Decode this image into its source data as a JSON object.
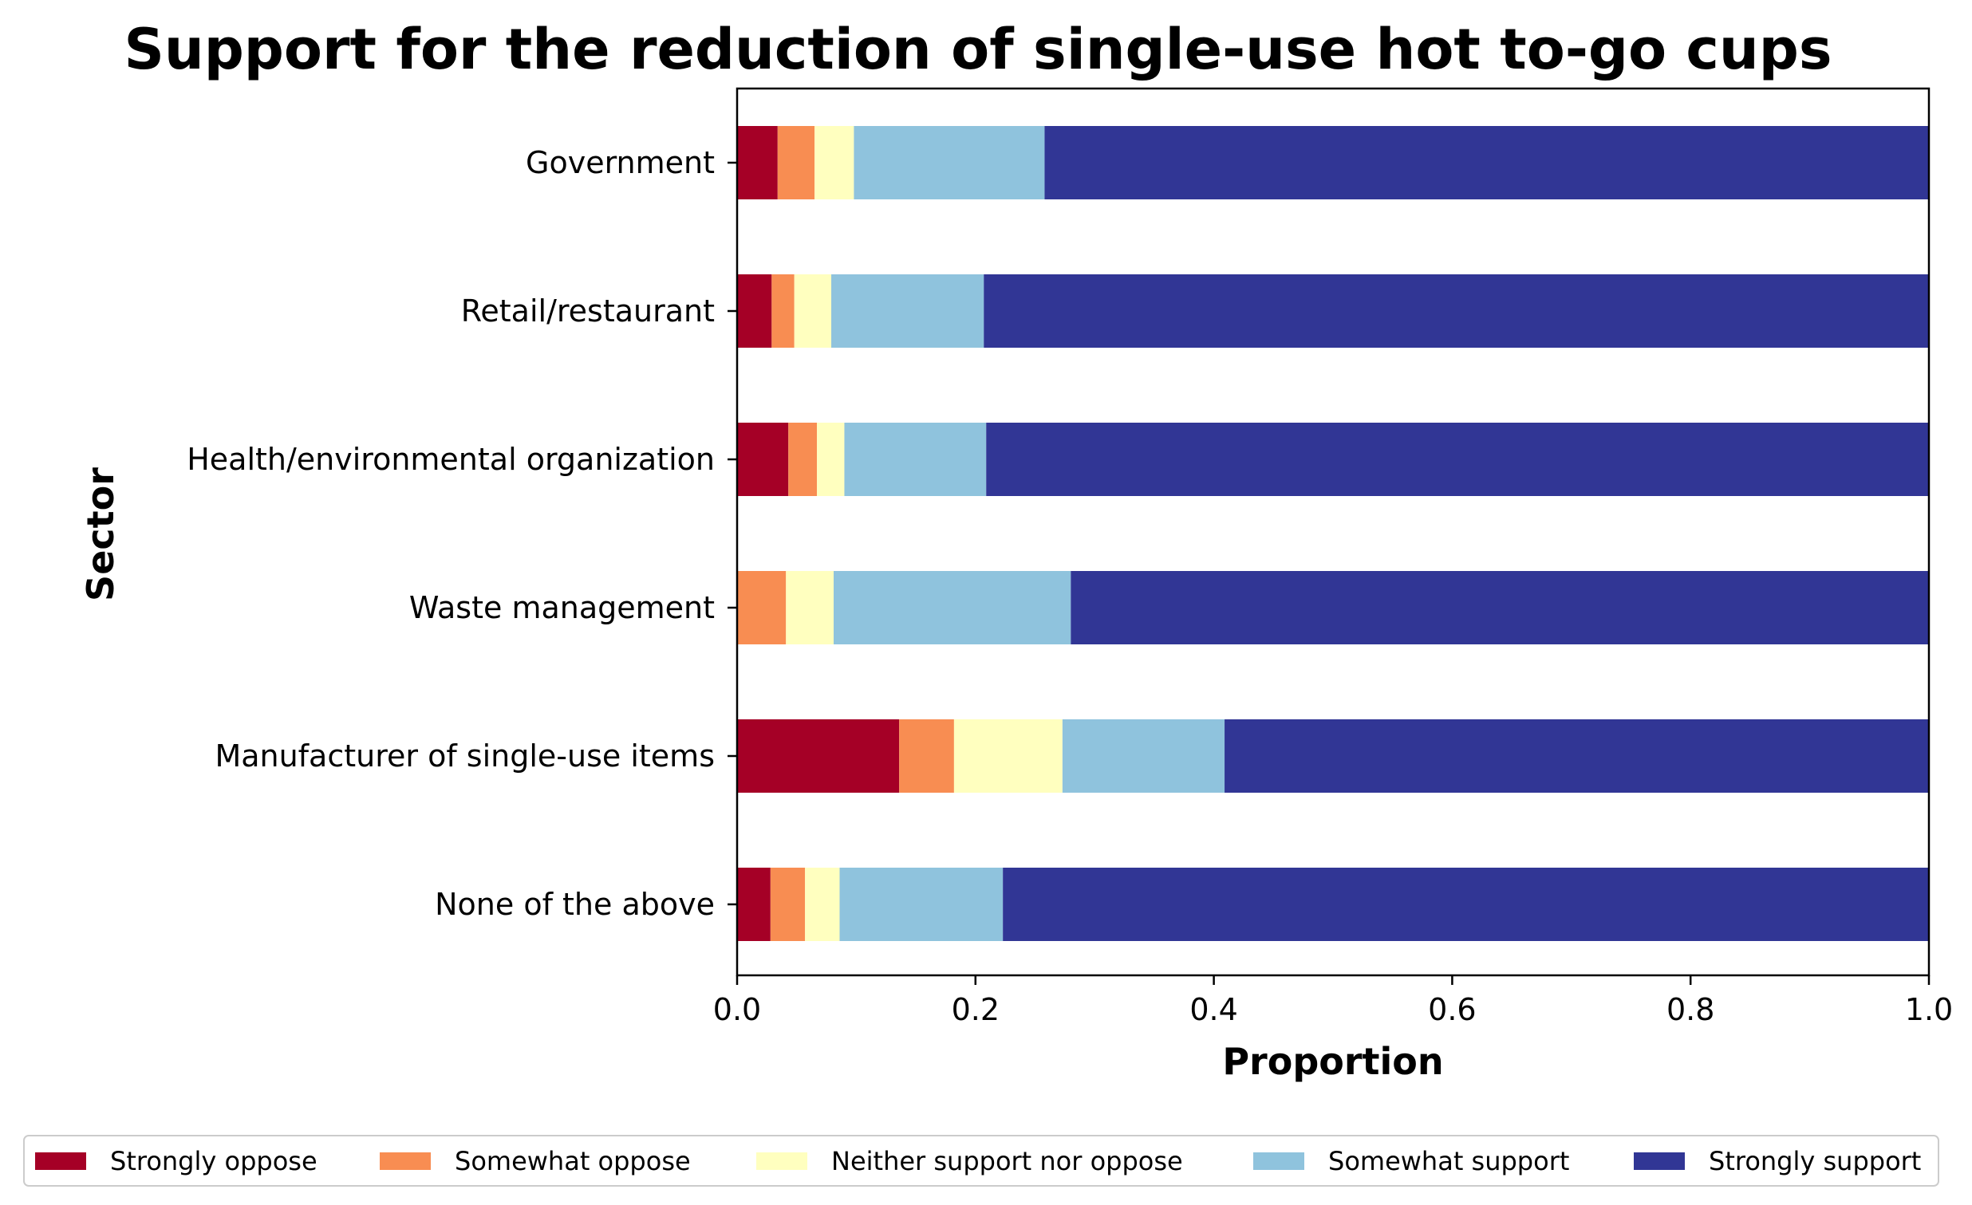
{
  "chart_data": {
    "type": "bar",
    "orientation": "horizontal",
    "stacked": true,
    "title": "Support for the reduction of single-use hot to-go cups",
    "xlabel": "Proportion",
    "ylabel": "Sector",
    "xlim": [
      0.0,
      1.0
    ],
    "xticks": [
      "0.0",
      "0.2",
      "0.4",
      "0.6",
      "0.8",
      "1.0"
    ],
    "categories": [
      "Government",
      "Retail/restaurant",
      "Health/environmental organization",
      "Waste management",
      "Manufacturer of single-use items",
      "None of the above"
    ],
    "series": [
      {
        "name": "Strongly oppose",
        "color": "#a50026",
        "values": [
          0.034,
          0.029,
          0.043,
          0.0,
          0.136,
          0.028
        ]
      },
      {
        "name": "Somewhat oppose",
        "color": "#f88d52",
        "values": [
          0.031,
          0.019,
          0.024,
          0.041,
          0.046,
          0.029
        ]
      },
      {
        "name": "Neither support nor oppose",
        "color": "#ffffbf",
        "values": [
          0.033,
          0.031,
          0.023,
          0.04,
          0.091,
          0.029
        ]
      },
      {
        "name": "Somewhat support",
        "color": "#8fc3dd",
        "values": [
          0.16,
          0.128,
          0.119,
          0.199,
          0.136,
          0.137
        ]
      },
      {
        "name": "Strongly support",
        "color": "#313695",
        "values": [
          0.742,
          0.793,
          0.791,
          0.72,
          0.591,
          0.777
        ]
      }
    ],
    "grid": false,
    "legend_position": "bottom"
  }
}
